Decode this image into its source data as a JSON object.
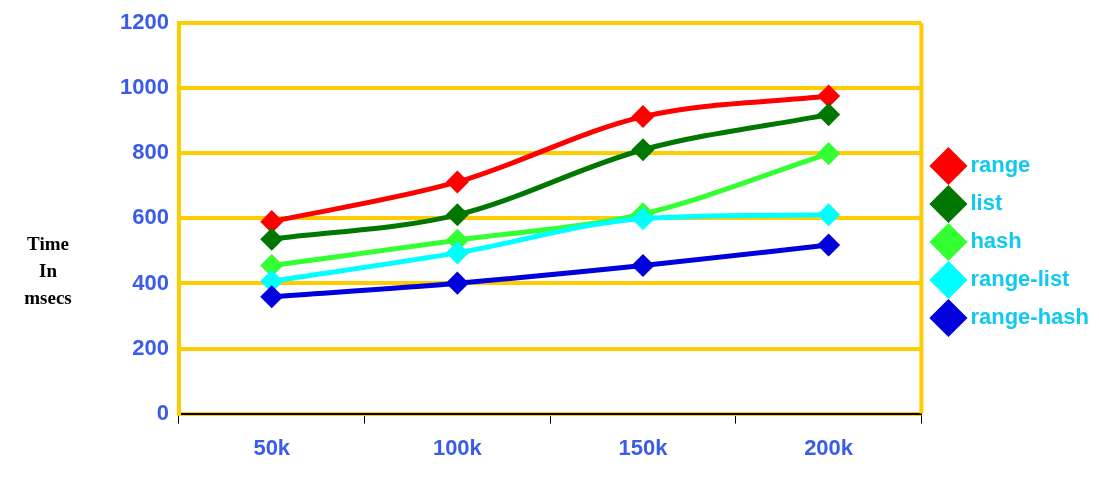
{
  "chart_data": {
    "type": "line",
    "ylabel": "Time In msecs",
    "categories": [
      "50k",
      "100k",
      "150k",
      "200k"
    ],
    "series": [
      {
        "name": "range",
        "color": "#ff0000",
        "values": [
          590,
          712,
          913,
          976
        ]
      },
      {
        "name": "list",
        "color": "#007700",
        "values": [
          536,
          611,
          811,
          919
        ]
      },
      {
        "name": "hash",
        "color": "#33ff33",
        "values": [
          455,
          533,
          614,
          799
        ]
      },
      {
        "name": "range-list",
        "color": "#00ffff",
        "values": [
          407,
          494,
          599,
          611
        ]
      },
      {
        "name": "range-hash",
        "color": "#0000dd",
        "values": [
          359,
          401,
          455,
          518
        ]
      }
    ],
    "ylim": [
      0,
      1200
    ],
    "yticks": [
      0,
      200,
      400,
      600,
      800,
      1000,
      1200
    ],
    "grid": "y",
    "legend": "right",
    "marker": "diamond",
    "line_style": "solid"
  }
}
